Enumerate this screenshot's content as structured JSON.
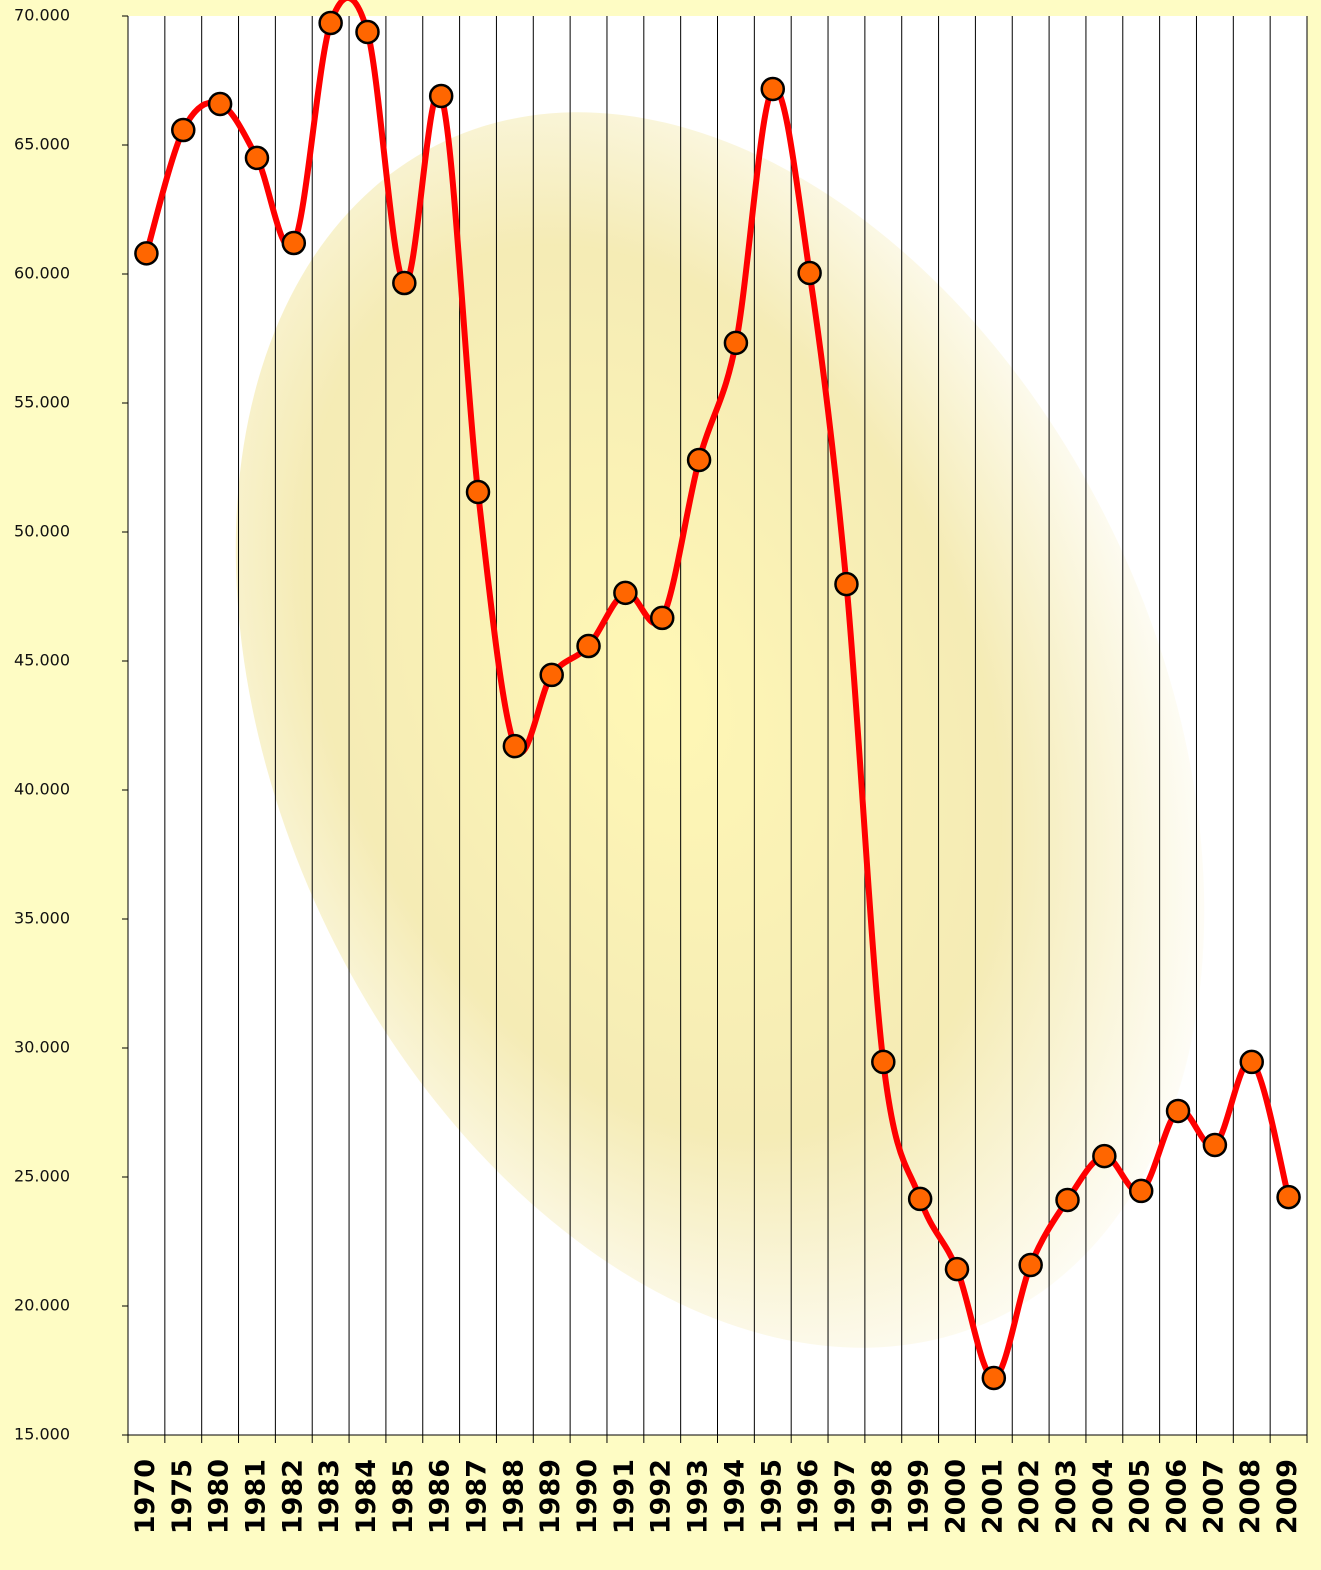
{
  "chart_data": {
    "type": "line",
    "categories": [
      "1970",
      "1975",
      "1980",
      "1981",
      "1982",
      "1983",
      "1984",
      "1985",
      "1986",
      "1987",
      "1988",
      "1989",
      "1990",
      "1991",
      "1992",
      "1993",
      "1994",
      "1995",
      "1996",
      "1997",
      "1998",
      "1999",
      "2000",
      "2001",
      "2002",
      "2003",
      "2004",
      "2005",
      "2006",
      "2007",
      "2008",
      "2009"
    ],
    "series": [
      {
        "color": "#ff0000",
        "marker_color": "#ff6600",
        "values": [
          60800,
          65580,
          66590,
          64500,
          61200,
          69730,
          69380,
          59650,
          66900,
          51550,
          41700,
          44460,
          45580,
          47640,
          46670,
          52790,
          57330,
          67170,
          60040,
          47980,
          29460,
          24150,
          21430,
          17210,
          21590,
          24110,
          25810,
          24460,
          27560,
          26240,
          29460,
          24220
        ]
      }
    ],
    "ylim": [
      15000,
      70000
    ],
    "yticks": [
      {
        "value": 70000,
        "label": "70.000"
      },
      {
        "value": 65000,
        "label": "65.000"
      },
      {
        "value": 60000,
        "label": "60.000"
      },
      {
        "value": 55000,
        "label": "55.000"
      },
      {
        "value": 50000,
        "label": "50.000"
      },
      {
        "value": 45000,
        "label": "45.000"
      },
      {
        "value": 40000,
        "label": "40.000"
      },
      {
        "value": 35000,
        "label": "35.000"
      },
      {
        "value": 30000,
        "label": "30.000"
      },
      {
        "value": 25000,
        "label": "25.000"
      },
      {
        "value": 20000,
        "label": "20.000"
      },
      {
        "value": 15000,
        "label": "15.000"
      }
    ],
    "smooth": true
  }
}
